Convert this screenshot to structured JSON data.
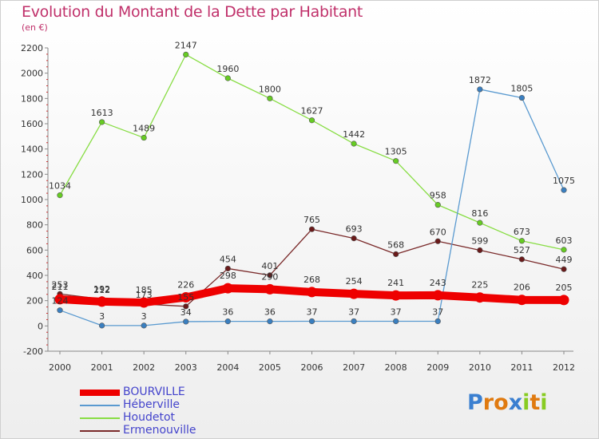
{
  "title": "Evolution du Montant de la Dette par Habitant",
  "subtitle": "(en €)",
  "logo_text": "Proxiti",
  "chart_data": {
    "type": "line",
    "x": [
      "2000",
      "2001",
      "2002",
      "2003",
      "2004",
      "2005",
      "2006",
      "2007",
      "2008",
      "2009",
      "2010",
      "2011",
      "2012"
    ],
    "ylim": [
      -200,
      2200
    ],
    "yticks": [
      -200,
      0,
      200,
      400,
      600,
      800,
      1000,
      1200,
      1400,
      1600,
      1800,
      2000,
      2200
    ],
    "grid": false,
    "legend_position": "bottom-left",
    "series": [
      {
        "name": "Houdetot",
        "color": "#88dd44",
        "marker": "#66cc22",
        "values": [
          1034,
          1613,
          1489,
          2147,
          1960,
          1800,
          1627,
          1442,
          1305,
          958,
          816,
          673,
          603
        ]
      },
      {
        "name": "Ermenouville",
        "color": "#7a2a2a",
        "marker": "#6a1a1a",
        "values": [
          253,
          212,
          173,
          155,
          454,
          401,
          765,
          693,
          568,
          670,
          599,
          527,
          449
        ]
      },
      {
        "name": "Héberville",
        "color": "#5a9ad0",
        "marker": "#3a7fc0",
        "values": [
          124,
          3,
          3,
          34,
          36,
          36,
          37,
          37,
          37,
          37,
          1872,
          1805,
          1075
        ]
      },
      {
        "name": "BOURVILLE",
        "color": "#ee0000",
        "marker": "#ee0000",
        "values": [
          211,
          192,
          185,
          226,
          298,
          290,
          268,
          254,
          241,
          243,
          225,
          206,
          205
        ]
      }
    ]
  }
}
